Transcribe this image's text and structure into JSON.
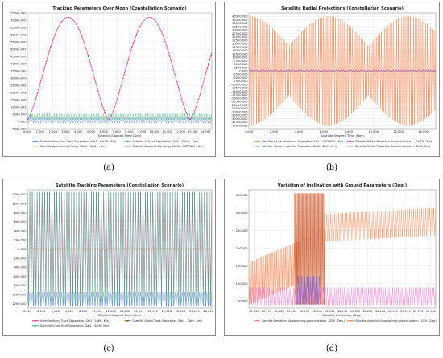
{
  "figure_labels": [
    "(a)",
    "(b)",
    "(c)",
    "(d)"
  ],
  "chart_data": [
    {
      "type": "line",
      "title": "Tracking Parameters Over Moon (Constellation Scenario)",
      "xlabel": "Satellite Elapsed Time (Day)",
      "x_ticks": [
        "0.000",
        "1,000",
        "2,000",
        "3,000",
        "4,000",
        "5,000",
        "6,000",
        "7,000",
        "8,000",
        "9,000",
        "10,000",
        "11,000",
        "12,000",
        "13,000",
        "14,000"
      ],
      "y_ticks": [
        "75000.000",
        "70000.000",
        "65000.000",
        "60000.000",
        "55000.000",
        "50000.000",
        "45000.000",
        "40000.000",
        "35000.000",
        "30000.000",
        "25000.000",
        "20000.000",
        "15000.000",
        "10000.000",
        "5000.000",
        "0.000",
        "-5000.000"
      ],
      "xlim": [
        0,
        14500
      ],
      "ylim": [
        -5000,
        75000
      ],
      "legend": [
        "Satellite Along Arc Track Separation (Sat1 - Sat19 - Km)",
        "Satellite In Track Separation (Sat1 - Sat19 - Km)",
        "Satellite Approaching Range (Sat1 - Sat19 - Km)",
        "Satellite Approaching Range (Sat1 - GATEWAY - Km)"
      ],
      "series": [
        {
          "name": "Satellite Approaching Range (Sat1 - GATEWAY - Km)",
          "color": "#e0288a",
          "kind": "arches",
          "period": 6400,
          "phase": 0,
          "peak": 72000,
          "min": 1200
        },
        {
          "name": "Satellite In Track Separation (Sat1 - Sat19 - Km)",
          "color": "#2aa878",
          "kind": "band",
          "low": 1200,
          "high": 5200
        },
        {
          "name": "Satellite Along Arc Track Separation (Sat1 - Sat19 - Km)",
          "color": "#4a7fd4",
          "kind": "band",
          "low": -1200,
          "high": 2600
        },
        {
          "name": "Satellite Approaching Range (Sat1 - Sat19 - Km)",
          "color": "#c8b400",
          "kind": "band",
          "low": 2400,
          "high": 3400
        }
      ],
      "legend_position": "bottom",
      "grid": true
    },
    {
      "type": "line",
      "title": "Satellite Radial Projections (Constellation Scenario)",
      "xlabel": "Satellite Elapsed Time (Day)",
      "x_ticks": [
        "0.000",
        "2,000",
        "4,000",
        "6,000",
        "8,000",
        "10,000",
        "12,000",
        "14,000"
      ],
      "y_ticks": [
        "40000.000",
        "37500.000",
        "35000.000",
        "32500.000",
        "30000.000",
        "27500.000",
        "25000.000",
        "22500.000",
        "20000.000",
        "17500.000",
        "15000.000",
        "12500.000",
        "10000.000",
        "7500.000",
        "5000.000",
        "2500.000",
        "0.000",
        "-2500.000",
        "-5000.000",
        "-7500.000",
        "-10000.000",
        "-12500.000",
        "-15000.000",
        "-17500.000",
        "-20000.000",
        "-22500.000",
        "-25000.000",
        "-27500.000",
        "-30000.000",
        "-32500.000",
        "-35000.000",
        "-37500.000",
        "-40000.000"
      ],
      "xlim": [
        0,
        15000
      ],
      "ylim": [
        -42500,
        42500
      ],
      "legend": [
        "Satellite Radial Projection Separation(Sat1 - GATEWAY - Km)",
        "Satellite Radial Projection Separation(Sat1 - Sat19 - Km)",
        "Satellite Radial Projection Separation(Sat1 - Sat9 - Km)",
        "Satellite Radial Projection Separation(Sat1 - Sat4 - Km)"
      ],
      "series": [
        {
          "name": "Satellite Radial Projection Separation(Sat1 - GATEWAY - Km)",
          "color": "#f07840",
          "kind": "envelope",
          "period": 6400,
          "amp_max": 40000,
          "amp_min": 18000
        },
        {
          "name": "Satellite Radial Projection Separation(Sat1 - Sat19 - Km)",
          "color": "#e0288a",
          "kind": "band",
          "low": -900,
          "high": 900
        },
        {
          "name": "Satellite Radial Projection Separation(Sat1 - Sat9 - Km)",
          "color": "#3a9a6a",
          "kind": "band",
          "low": -400,
          "high": 400
        },
        {
          "name": "Satellite Radial Projection Separation(Sat1 - Sat4 - Km)",
          "color": "#8a5cc8",
          "kind": "band",
          "low": -200,
          "high": 200
        }
      ],
      "legend_position": "bottom",
      "grid": true
    },
    {
      "type": "line",
      "title": "Satellite Tracking Parameters (Constellation Scenario)",
      "xlabel": "Satellite Elapsed Time (Day)",
      "x_ticks": [
        "0.000",
        "2,000",
        "4,000",
        "6,000",
        "8,000",
        "10,000",
        "12,000",
        "14,000",
        "16,000",
        "18,000",
        "20,000",
        "22,000",
        "24,000",
        "26,000"
      ],
      "y_ticks": [
        "1200.000",
        "1000.000",
        "800.000",
        "600.000",
        "400.000",
        "200.000",
        "0.000",
        "-200.000",
        "-400.000",
        "-600.000",
        "-800.000",
        "-1000.000",
        "-1200.000"
      ],
      "xlim": [
        0,
        26500
      ],
      "ylim": [
        -1300,
        1300
      ],
      "legend": [
        "Satellite Along Track Separation (Sat1 - Sat9 - Km)",
        "Satellite Radial Track Separation (Sat1 - Sat9 - Km)",
        "Satellite Cross Track Separation (Sat1 - Sat9 - Km)"
      ],
      "series": [
        {
          "name": "Satellite Along Track Separation (Sat1 - Sat9 - Km)",
          "color": "#e0288a",
          "kind": "band",
          "low": -1000,
          "high": 1250
        },
        {
          "name": "Satellite Cross Track Separation (Sat1 - Sat9 - Km)",
          "color": "#2aa878",
          "kind": "band",
          "low": -1250,
          "high": 1250
        },
        {
          "name": "Satellite Radial Track Separation (Sat1 - Sat9 - Km)",
          "color": "#7a4e12",
          "kind": "band",
          "low": -15,
          "high": 15
        },
        {
          "name": "Satellite Along Track Separation (Sat1 - Sat9 - Km)",
          "color": "#5a78d8",
          "kind": "band",
          "low": -1250,
          "high": -950
        }
      ],
      "legend_position": "bottom",
      "grid": true
    },
    {
      "type": "line",
      "title": "Variation of Inclination with Ground Parameters (Deg.)",
      "xlabel": "Satellite Inclination (Deg.)",
      "x_ticks": [
        "30.110",
        "30.115",
        "30.120",
        "30.125",
        "30.130",
        "30.135",
        "30.140",
        "30.145",
        "30.150",
        "30.155",
        "30.160",
        "30.165",
        "30.170",
        "30.175",
        "30.180"
      ],
      "y_ticks": [
        "350.000",
        "300.000",
        "250.000",
        "200.000",
        "150.000",
        "100.000",
        "50.000"
      ],
      "xlim": [
        30.108,
        30.182
      ],
      "ylim": [
        30,
        365
      ],
      "legend": [
        "Satellite Elevation (Approaching ground station - GS9 - Deg.)",
        "Satellite Azimuth (Approaching ground station - GS9 - Deg.)"
      ],
      "series": [
        {
          "name": "Satellite Azimuth (Approaching ground station - GS9 - Deg.)",
          "color": "#f07840",
          "kind": "azimuth"
        },
        {
          "name": "Satellite Elevation (Approaching ground station - GS9 - Deg.)",
          "color": "#e66ec8",
          "kind": "elevation"
        }
      ],
      "legend_position": "bottom",
      "grid": true
    }
  ]
}
